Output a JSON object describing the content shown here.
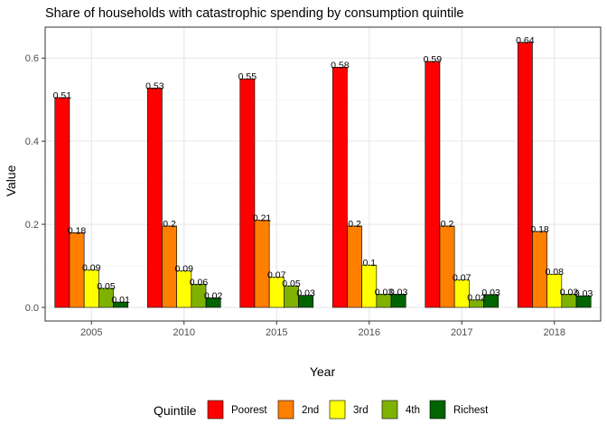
{
  "chart_data": {
    "type": "bar",
    "title": "Share of households with catastrophic spending by consumption quintile",
    "xlabel": "Year",
    "ylabel": "Value",
    "categories": [
      "2005",
      "2010",
      "2015",
      "2016",
      "2017",
      "2018"
    ],
    "ylim": [
      0,
      0.66
    ],
    "yticks": [
      0.0,
      0.2,
      0.4,
      0.6
    ],
    "ytick_labels": [
      "0.0",
      "0.2",
      "0.4",
      "0.6"
    ],
    "grid": true,
    "legend": {
      "title": "Quintile",
      "position": "bottom"
    },
    "series": [
      {
        "name": "Poorest",
        "color": "#ff0000",
        "values": [
          0.505,
          0.528,
          0.55,
          0.578,
          0.592,
          0.638
        ],
        "labels": [
          "0.51",
          "0.53",
          "0.55",
          "0.58",
          "0.59",
          "0.64"
        ]
      },
      {
        "name": "2nd",
        "color": "#ff7f00",
        "values": [
          0.18,
          0.196,
          0.21,
          0.196,
          0.196,
          0.183
        ],
        "labels": [
          "0.18",
          "0.2",
          "0.21",
          "0.2",
          "0.2",
          "0.18"
        ]
      },
      {
        "name": "3rd",
        "color": "#ffff00",
        "values": [
          0.09,
          0.088,
          0.073,
          0.102,
          0.066,
          0.08
        ],
        "labels": [
          "0.09",
          "0.09",
          "0.07",
          "0.1",
          "0.07",
          "0.08"
        ]
      },
      {
        "name": "4th",
        "color": "#7fb200",
        "values": [
          0.046,
          0.056,
          0.052,
          0.032,
          0.018,
          0.032
        ],
        "labels": [
          "0.05",
          "0.06",
          "0.05",
          "0.03",
          "0.02",
          "0.03"
        ]
      },
      {
        "name": "Richest",
        "color": "#006400",
        "values": [
          0.013,
          0.023,
          0.029,
          0.032,
          0.031,
          0.028
        ],
        "labels": [
          "0.01",
          "0.02",
          "0.03",
          "0.03",
          "0.03",
          "0.03"
        ]
      }
    ]
  }
}
